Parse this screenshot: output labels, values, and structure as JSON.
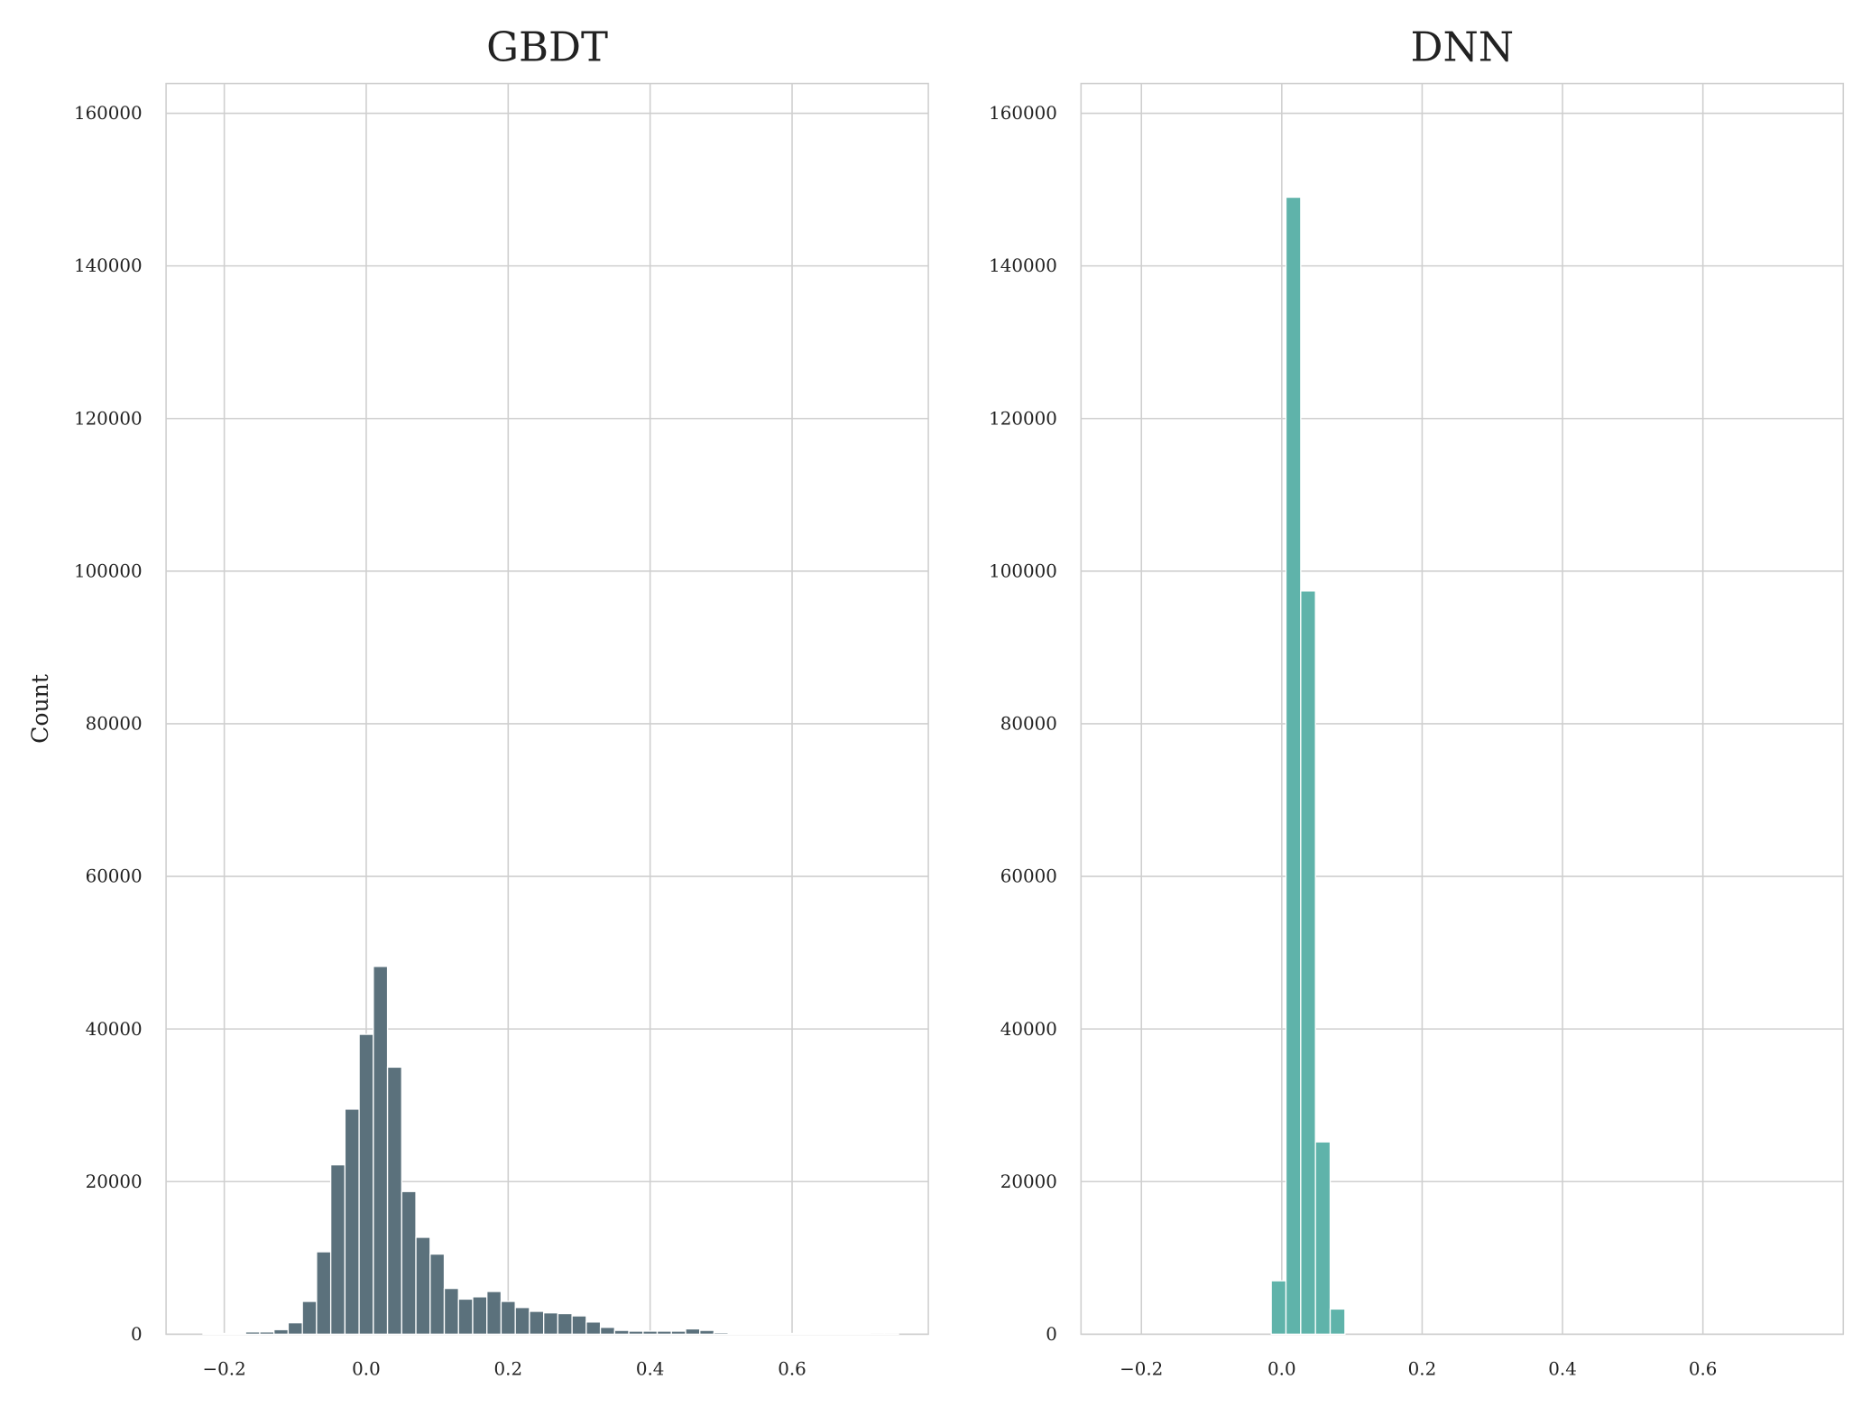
{
  "chart_data": [
    {
      "type": "histogram",
      "title": "GBDT",
      "ylabel": "Count",
      "color": "#5b717c",
      "grid": true,
      "bins": [
        -0.23,
        -0.21,
        -0.19,
        -0.17,
        -0.15,
        -0.13,
        -0.11,
        -0.09,
        -0.07,
        -0.05,
        -0.03,
        -0.01,
        0.01,
        0.03,
        0.05,
        0.07,
        0.09,
        0.11,
        0.13,
        0.15,
        0.17,
        0.19,
        0.21,
        0.23,
        0.25,
        0.27,
        0.29,
        0.31,
        0.33,
        0.35,
        0.37,
        0.39,
        0.41,
        0.43,
        0.45,
        0.47,
        0.49,
        0.51,
        0.53,
        0.55,
        0.57,
        0.59,
        0.61,
        0.63,
        0.65,
        0.67,
        0.69,
        0.71,
        0.73,
        0.75
      ],
      "counts": [
        50,
        100,
        100,
        300,
        300,
        600,
        1500,
        4300,
        10800,
        22200,
        29500,
        39300,
        48200,
        35000,
        18700,
        12700,
        10500,
        6000,
        4600,
        4900,
        5600,
        4300,
        3500,
        3000,
        2800,
        2700,
        2400,
        1600,
        900,
        500,
        400,
        400,
        400,
        400,
        700,
        500,
        200,
        100,
        100,
        100,
        100,
        100,
        50,
        50,
        30,
        20,
        20,
        10,
        10
      ],
      "xlim": [
        -0.282,
        0.792
      ],
      "ylim": [
        0,
        163900
      ],
      "xticks": [
        {
          "value": -0.2,
          "label": "−0.2"
        },
        {
          "value": 0,
          "label": "0.0"
        },
        {
          "value": 0.2,
          "label": "0.2"
        },
        {
          "value": 0.4,
          "label": "0.4"
        },
        {
          "value": 0.6,
          "label": "0.6"
        }
      ],
      "yticks": [
        0,
        20000,
        40000,
        60000,
        80000,
        100000,
        120000,
        140000,
        160000
      ]
    },
    {
      "type": "histogram",
      "title": "DNN",
      "color": "#5fb3aa",
      "grid": true,
      "bins": [
        -0.015,
        0.006,
        0.027,
        0.048,
        0.069,
        0.09
      ],
      "counts": [
        7000,
        149000,
        97400,
        25200,
        3300
      ],
      "xlim": [
        -0.286,
        0.8
      ],
      "ylim": [
        0,
        163900
      ],
      "xticks": [
        {
          "value": -0.2,
          "label": "−0.2"
        },
        {
          "value": 0,
          "label": "0.0"
        },
        {
          "value": 0.2,
          "label": "0.2"
        },
        {
          "value": 0.4,
          "label": "0.4"
        },
        {
          "value": 0.6,
          "label": "0.6"
        }
      ],
      "yticks": [
        0,
        20000,
        40000,
        60000,
        80000,
        100000,
        120000,
        140000,
        160000
      ]
    }
  ]
}
